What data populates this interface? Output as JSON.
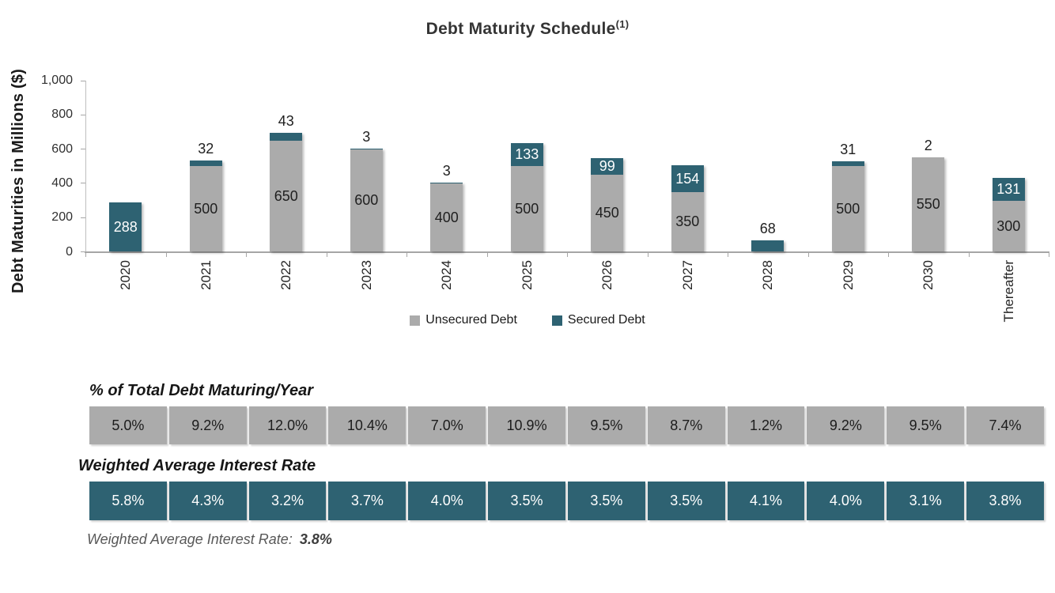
{
  "header": {
    "title": "Debt Maturity Schedule",
    "footnote_marker": "(1)"
  },
  "colors": {
    "unsecured_gray": "#ABABAB",
    "secured_teal": "#2E6272",
    "axis_gray": "#A6A6A6",
    "axis_light": "#BFBFBF",
    "label_dark": "#1F1F1F",
    "label_white": "#FFFFFF"
  },
  "chart_data": {
    "type": "bar",
    "stacked": true,
    "title": "Debt Maturity Schedule(1)",
    "xlabel": "",
    "ylabel": "Debt Maturities in Millions ($)",
    "ylim": [
      0,
      1000
    ],
    "grid": false,
    "legend_position": "bottom",
    "yticks": [
      {
        "value": 0,
        "label": "0"
      },
      {
        "value": 200,
        "label": "200"
      },
      {
        "value": 400,
        "label": "400"
      },
      {
        "value": 600,
        "label": "600"
      },
      {
        "value": 800,
        "label": "800"
      },
      {
        "value": 1000,
        "label": "1,000"
      }
    ],
    "categories": [
      "2020",
      "2021",
      "2022",
      "2023",
      "2024",
      "2025",
      "2026",
      "2027",
      "2028",
      "2029",
      "2030",
      "Thereafter"
    ],
    "series": [
      {
        "name": "Unsecured Debt",
        "color": "#ABABAB",
        "values": [
          0,
          500,
          650,
          600,
          400,
          500,
          450,
          350,
          0,
          500,
          550,
          300
        ]
      },
      {
        "name": "Secured Debt",
        "color": "#2E6272",
        "values": [
          288,
          32,
          43,
          3,
          3,
          133,
          99,
          154,
          68,
          31,
          2,
          131
        ],
        "label_placement": [
          "inside",
          "above",
          "above",
          "above",
          "above",
          "inside",
          "inside",
          "inside",
          "above",
          "above",
          "above",
          "inside"
        ]
      }
    ]
  },
  "tables": [
    {
      "heading": "% of Total Debt Maturing/Year",
      "style": "gray",
      "values": [
        "5.0%",
        "9.2%",
        "12.0%",
        "10.4%",
        "7.0%",
        "10.9%",
        "9.5%",
        "8.7%",
        "1.2%",
        "9.2%",
        "9.5%",
        "7.4%"
      ]
    },
    {
      "heading": "Weighted Average Interest Rate",
      "style": "teal",
      "values": [
        "5.8%",
        "4.3%",
        "3.2%",
        "3.7%",
        "4.0%",
        "3.5%",
        "3.5%",
        "3.5%",
        "4.1%",
        "4.0%",
        "3.1%",
        "3.8%"
      ]
    }
  ],
  "footer": {
    "label": "Weighted Average Interest Rate: ",
    "value": "3.8%"
  }
}
